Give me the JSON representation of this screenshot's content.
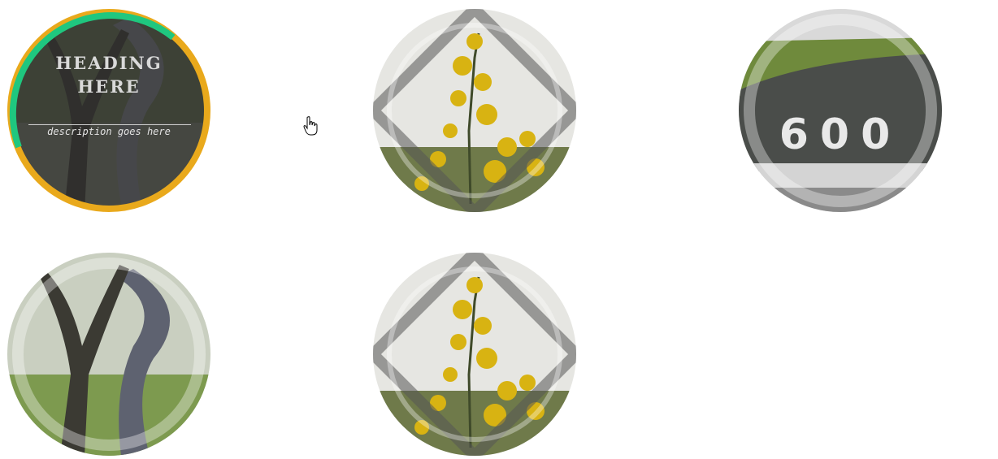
{
  "tiles": [
    {
      "id": "tree-archway",
      "hovered": true,
      "heading": "HEADING\nHERE",
      "description": "description goes here",
      "ring_colors": {
        "primary": "#1fc77f",
        "secondary": "#e9a91c"
      }
    },
    {
      "id": "yellow-blossoms"
    },
    {
      "id": "road-600",
      "road_marking": "600"
    },
    {
      "id": "tree-archway-plain"
    },
    {
      "id": "yellow-blossoms-2"
    }
  ],
  "colors": {
    "overlay": "#2b2b2b",
    "blossom": "#d8b312",
    "asphalt": "#4a4d4a",
    "grass": "#6f8a3c",
    "brick": "#7c7f88",
    "sky": "#e6e6e2"
  },
  "cursor": {
    "icon": "hand-pointer-icon"
  }
}
